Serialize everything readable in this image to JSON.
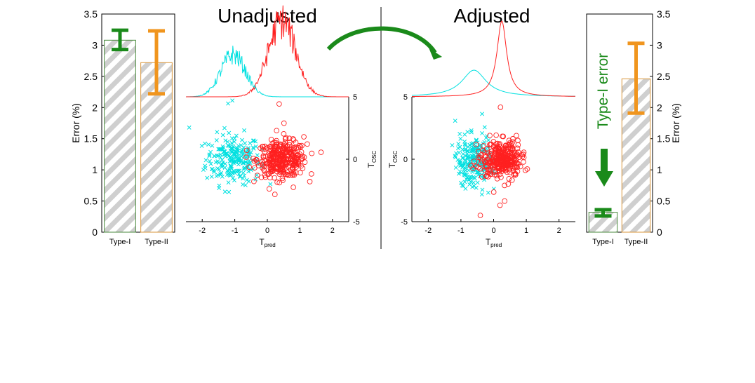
{
  "titles": {
    "left": "Unadjusted",
    "right": "Adjusted"
  },
  "annotations": {
    "type1_error": "Type-I error"
  },
  "colors": {
    "type1_bar_border": "#4a8a3c",
    "type2_bar_border": "#d9963a",
    "type1_errorbar": "#1a8a1a",
    "type2_errorbar": "#f0951e",
    "class_a": "#00e0e0",
    "class_b": "#ff2020",
    "arrow": "#1a8a1a"
  },
  "chart_data": [
    {
      "id": "error-bars-unadjusted",
      "type": "bar",
      "categories": [
        "Type-I",
        "Type-II"
      ],
      "values": [
        3.08,
        2.72
      ],
      "error_ranges": [
        [
          2.93,
          3.24
        ],
        [
          2.22,
          3.23
        ]
      ],
      "ylabel": "Error (%)",
      "ylim": [
        0,
        3.5
      ],
      "yticks": [
        "0",
        "0.5",
        "1",
        "1.5",
        "2",
        "2.5",
        "3",
        "3.5"
      ],
      "ytick_values": [
        0,
        0.5,
        1,
        1.5,
        2,
        2.5,
        3,
        3.5
      ]
    },
    {
      "id": "scatter-unadjusted",
      "type": "scatter",
      "xlabel": "T",
      "xlabel_sub": "pred",
      "ylabel": "T",
      "ylabel_sub": "OSC",
      "xlim": [
        -2.5,
        2.5
      ],
      "ylim": [
        -5,
        5
      ],
      "xticks": [
        "-2",
        "-1",
        "0",
        "1",
        "2"
      ],
      "xtick_values": [
        -2,
        -1,
        0,
        1,
        2
      ],
      "yticks": [
        "5",
        "0",
        "-5"
      ],
      "ytick_values": [
        5,
        0,
        -5
      ],
      "series": [
        {
          "marker": "x",
          "center": [
            -1.05,
            0.0
          ],
          "spread": [
            0.42,
            1.0
          ]
        },
        {
          "marker": "o",
          "center": [
            0.45,
            0.0
          ],
          "spread": [
            0.38,
            0.7
          ]
        }
      ],
      "density": "noisy"
    },
    {
      "id": "scatter-adjusted",
      "type": "scatter",
      "xlabel": "T",
      "xlabel_sub": "pred",
      "ylabel": "T",
      "ylabel_sub": "OSC",
      "xlim": [
        -2.5,
        2.5
      ],
      "ylim": [
        -5,
        5
      ],
      "xticks": [
        "-2",
        "-1",
        "0",
        "1",
        "2"
      ],
      "xtick_values": [
        -2,
        -1,
        0,
        1,
        2
      ],
      "yticks": [
        "5",
        "0",
        "-5"
      ],
      "ytick_values": [
        5,
        0,
        -5
      ],
      "series": [
        {
          "marker": "x",
          "center": [
            -0.6,
            -0.2
          ],
          "spread": [
            0.3,
            1.0
          ]
        },
        {
          "marker": "o",
          "center": [
            0.25,
            0.0
          ],
          "spread": [
            0.3,
            0.7
          ]
        }
      ],
      "density": "smooth"
    },
    {
      "id": "error-bars-adjusted",
      "type": "bar",
      "categories": [
        "Type-I",
        "Type-II"
      ],
      "values": [
        0.32,
        2.46
      ],
      "error_ranges": [
        [
          0.26,
          0.36
        ],
        [
          1.91,
          3.03
        ]
      ],
      "ylabel": "Error (%)",
      "ylim": [
        0,
        3.5
      ],
      "yticks": [
        "0",
        "0.5",
        "1",
        "1.5",
        "2",
        "2.5",
        "3",
        "3.5"
      ],
      "ytick_values": [
        0,
        0.5,
        1,
        1.5,
        2,
        2.5,
        3,
        3.5
      ]
    }
  ]
}
